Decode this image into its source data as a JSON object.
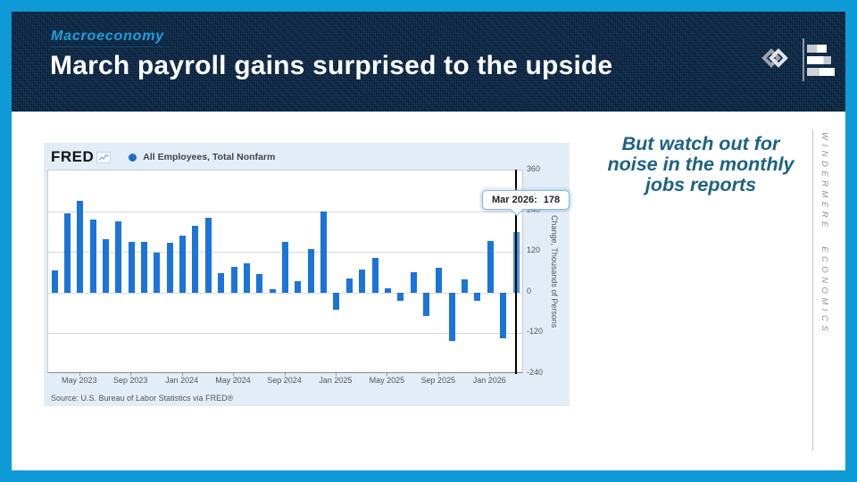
{
  "slide": {
    "kicker": "Macroeconomy",
    "title": "March payroll gains surprised to the upside",
    "note_lines": [
      "But watch out for",
      "noise in the monthly",
      "jobs reports"
    ],
    "brand_vertical": "WINDERMERE ECONOMICS"
  },
  "colors": {
    "border_cyan": "#0d9ad6",
    "header_navy": "#0e2b4a",
    "kicker_cyan": "#1ba0dc",
    "note_teal": "#1d6285",
    "bar_blue": "#1b74d9",
    "bar_highlight": "#4292e8",
    "card_bg": "#e3edf8"
  },
  "chart": {
    "provider": "FRED",
    "legend_label": "All Employees, Total Nonfarm",
    "tooltip": {
      "label": "Mar 2026:",
      "value": "178"
    },
    "y_axis_title": "Change, Thousands of Persons",
    "source": "Source: U.S. Bureau of Labor Statistics via FRED®"
  },
  "chart_data": {
    "type": "bar",
    "title": "All Employees, Total Nonfarm",
    "xlabel": "",
    "ylabel": "Change, Thousands of Persons",
    "ylim": [
      -240,
      360
    ],
    "yticks": [
      360,
      240,
      120,
      0,
      -120,
      -240
    ],
    "gridlines": [
      240,
      120,
      0,
      -120
    ],
    "xticks": [
      "May 2023",
      "Sep 2023",
      "Jan 2024",
      "May 2024",
      "Sep 2024",
      "Jan 2025",
      "May 2025",
      "Sep 2025",
      "Jan 2026"
    ],
    "categories": [
      "Mar 2023",
      "Apr 2023",
      "May 2023",
      "Jun 2023",
      "Jul 2023",
      "Aug 2023",
      "Sep 2023",
      "Oct 2023",
      "Nov 2023",
      "Dec 2023",
      "Jan 2024",
      "Feb 2024",
      "Mar 2024",
      "Apr 2024",
      "May 2024",
      "Jun 2024",
      "Jul 2024",
      "Aug 2024",
      "Sep 2024",
      "Oct 2024",
      "Nov 2024",
      "Dec 2024",
      "Jan 2025",
      "Feb 2025",
      "Mar 2025",
      "Apr 2025",
      "May 2025",
      "Jun 2025",
      "Jul 2025",
      "Aug 2025",
      "Sep 2025",
      "Oct 2025",
      "Nov 2025",
      "Dec 2025",
      "Jan 2026",
      "Feb 2026",
      "Mar 2026"
    ],
    "values": [
      64,
      235,
      270,
      215,
      157,
      209,
      150,
      150,
      117,
      146,
      168,
      198,
      220,
      57,
      76,
      86,
      54,
      11,
      150,
      35,
      128,
      238,
      -51,
      41,
      67,
      102,
      13,
      -24,
      59,
      -68,
      73,
      -142,
      39,
      -24,
      152,
      -134,
      178
    ],
    "highlight_index": 36,
    "highlight_tooltip": {
      "label": "Mar 2026:",
      "value": 178
    },
    "legend_position": "top",
    "grid": true
  }
}
